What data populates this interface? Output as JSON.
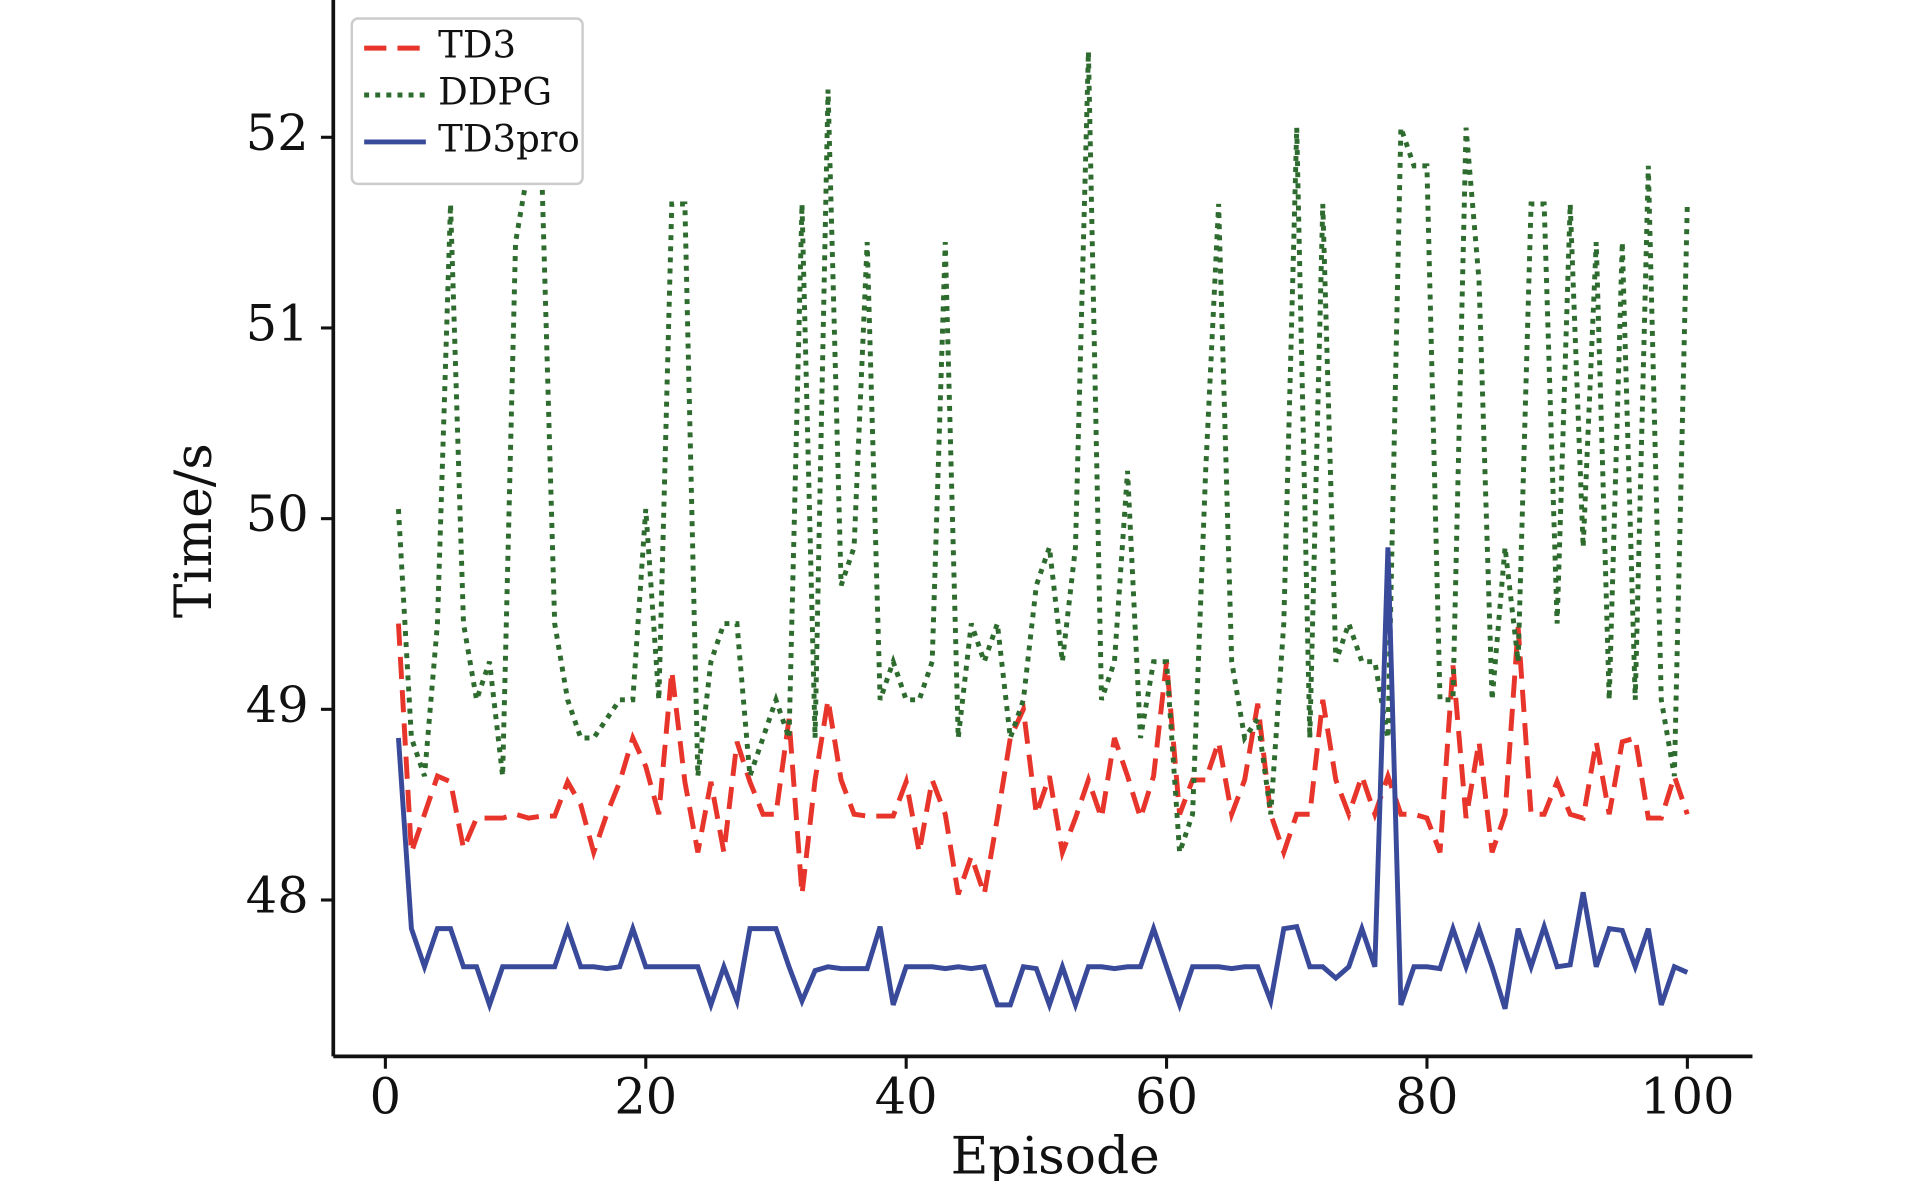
{
  "chart_data": {
    "type": "line",
    "xlabel": "Episode",
    "ylabel": "Time/s",
    "x": [
      1,
      2,
      3,
      4,
      5,
      6,
      7,
      8,
      9,
      10,
      11,
      12,
      13,
      14,
      15,
      16,
      17,
      18,
      19,
      20,
      21,
      22,
      23,
      24,
      25,
      26,
      27,
      28,
      29,
      30,
      31,
      32,
      33,
      34,
      35,
      36,
      37,
      38,
      39,
      40,
      41,
      42,
      43,
      44,
      45,
      46,
      47,
      48,
      49,
      50,
      51,
      52,
      53,
      54,
      55,
      56,
      57,
      58,
      59,
      60,
      61,
      62,
      63,
      64,
      65,
      66,
      67,
      68,
      69,
      70,
      71,
      72,
      73,
      74,
      75,
      76,
      77,
      78,
      79,
      80,
      81,
      82,
      83,
      84,
      85,
      86,
      87,
      88,
      89,
      90,
      91,
      92,
      93,
      94,
      95,
      96,
      97,
      98,
      99,
      100
    ],
    "series": [
      {
        "name": "TD3",
        "color": "#e8352b",
        "dash": "dashed",
        "values": [
          49.45,
          48.25,
          48.45,
          48.65,
          48.62,
          48.27,
          48.43,
          48.43,
          48.43,
          48.45,
          48.43,
          48.44,
          48.44,
          48.62,
          48.5,
          48.25,
          48.45,
          48.62,
          48.85,
          48.7,
          48.45,
          49.2,
          48.62,
          48.25,
          48.62,
          48.25,
          48.83,
          48.62,
          48.45,
          48.45,
          48.95,
          48.03,
          48.63,
          49.05,
          48.63,
          48.45,
          48.44,
          48.44,
          48.44,
          48.62,
          48.25,
          48.63,
          48.45,
          48.03,
          48.23,
          48.03,
          48.43,
          48.85,
          49.0,
          48.45,
          48.65,
          48.25,
          48.43,
          48.63,
          48.43,
          48.85,
          48.65,
          48.43,
          48.65,
          49.25,
          48.45,
          48.63,
          48.63,
          48.83,
          48.45,
          48.63,
          49.03,
          48.45,
          48.25,
          48.45,
          48.45,
          49.05,
          48.63,
          48.45,
          48.65,
          48.45,
          48.65,
          48.45,
          48.45,
          48.43,
          48.25,
          49.23,
          48.43,
          48.83,
          48.25,
          48.45,
          49.43,
          48.45,
          48.45,
          48.62,
          48.45,
          48.43,
          48.83,
          48.45,
          48.83,
          48.85,
          48.43,
          48.43,
          48.65,
          48.45
        ]
      },
      {
        "name": "DDPG",
        "color": "#2e6b2e",
        "dash": "dotted",
        "values": [
          50.05,
          48.85,
          48.65,
          49.45,
          51.65,
          49.45,
          49.05,
          49.25,
          48.65,
          51.45,
          51.85,
          51.85,
          49.45,
          49.05,
          48.85,
          48.85,
          48.95,
          49.05,
          49.05,
          50.05,
          49.05,
          51.65,
          51.65,
          48.65,
          49.25,
          49.45,
          49.45,
          48.65,
          48.85,
          49.05,
          48.85,
          51.65,
          48.85,
          52.25,
          49.65,
          49.85,
          51.45,
          49.05,
          49.25,
          49.05,
          49.05,
          49.25,
          51.45,
          48.85,
          49.45,
          49.25,
          49.45,
          48.85,
          49.05,
          49.65,
          49.85,
          49.25,
          49.85,
          52.45,
          49.05,
          49.25,
          50.25,
          48.85,
          49.25,
          49.25,
          48.25,
          48.45,
          50.25,
          51.65,
          49.25,
          48.85,
          48.95,
          48.45,
          49.45,
          52.05,
          48.85,
          51.65,
          49.25,
          49.45,
          49.25,
          49.25,
          48.85,
          52.05,
          51.85,
          51.85,
          49.05,
          49.05,
          52.05,
          51.25,
          49.05,
          49.85,
          49.25,
          51.65,
          51.65,
          49.45,
          51.65,
          49.85,
          51.45,
          49.05,
          51.45,
          49.05,
          51.85,
          49.05,
          48.65,
          51.65
        ]
      },
      {
        "name": "TD3pro",
        "color": "#3a4a9a",
        "dash": "solid",
        "values": [
          48.85,
          47.85,
          47.65,
          47.85,
          47.85,
          47.65,
          47.65,
          47.45,
          47.65,
          47.65,
          47.65,
          47.65,
          47.65,
          47.85,
          47.65,
          47.65,
          47.64,
          47.65,
          47.85,
          47.65,
          47.65,
          47.65,
          47.65,
          47.65,
          47.45,
          47.65,
          47.47,
          47.85,
          47.85,
          47.85,
          47.65,
          47.47,
          47.63,
          47.65,
          47.64,
          47.64,
          47.64,
          47.86,
          47.45,
          47.65,
          47.65,
          47.65,
          47.64,
          47.65,
          47.64,
          47.65,
          47.45,
          47.45,
          47.65,
          47.64,
          47.45,
          47.65,
          47.45,
          47.65,
          47.65,
          47.64,
          47.65,
          47.65,
          47.85,
          47.65,
          47.45,
          47.65,
          47.65,
          47.65,
          47.64,
          47.65,
          47.65,
          47.47,
          47.85,
          47.86,
          47.65,
          47.65,
          47.59,
          47.65,
          47.85,
          47.65,
          49.85,
          47.45,
          47.65,
          47.65,
          47.64,
          47.85,
          47.65,
          47.85,
          47.65,
          47.43,
          47.85,
          47.65,
          47.86,
          47.65,
          47.66,
          48.04,
          47.65,
          47.85,
          47.84,
          47.65,
          47.85,
          47.45,
          47.65,
          47.62
        ]
      }
    ],
    "xlim": [
      -4,
      105
    ],
    "ylim": [
      47.18,
      52.72
    ],
    "xticks": [
      0,
      20,
      40,
      60,
      80,
      100
    ],
    "yticks": [
      48,
      49,
      50,
      51,
      52
    ],
    "legend": "upper left",
    "grid": false
  }
}
